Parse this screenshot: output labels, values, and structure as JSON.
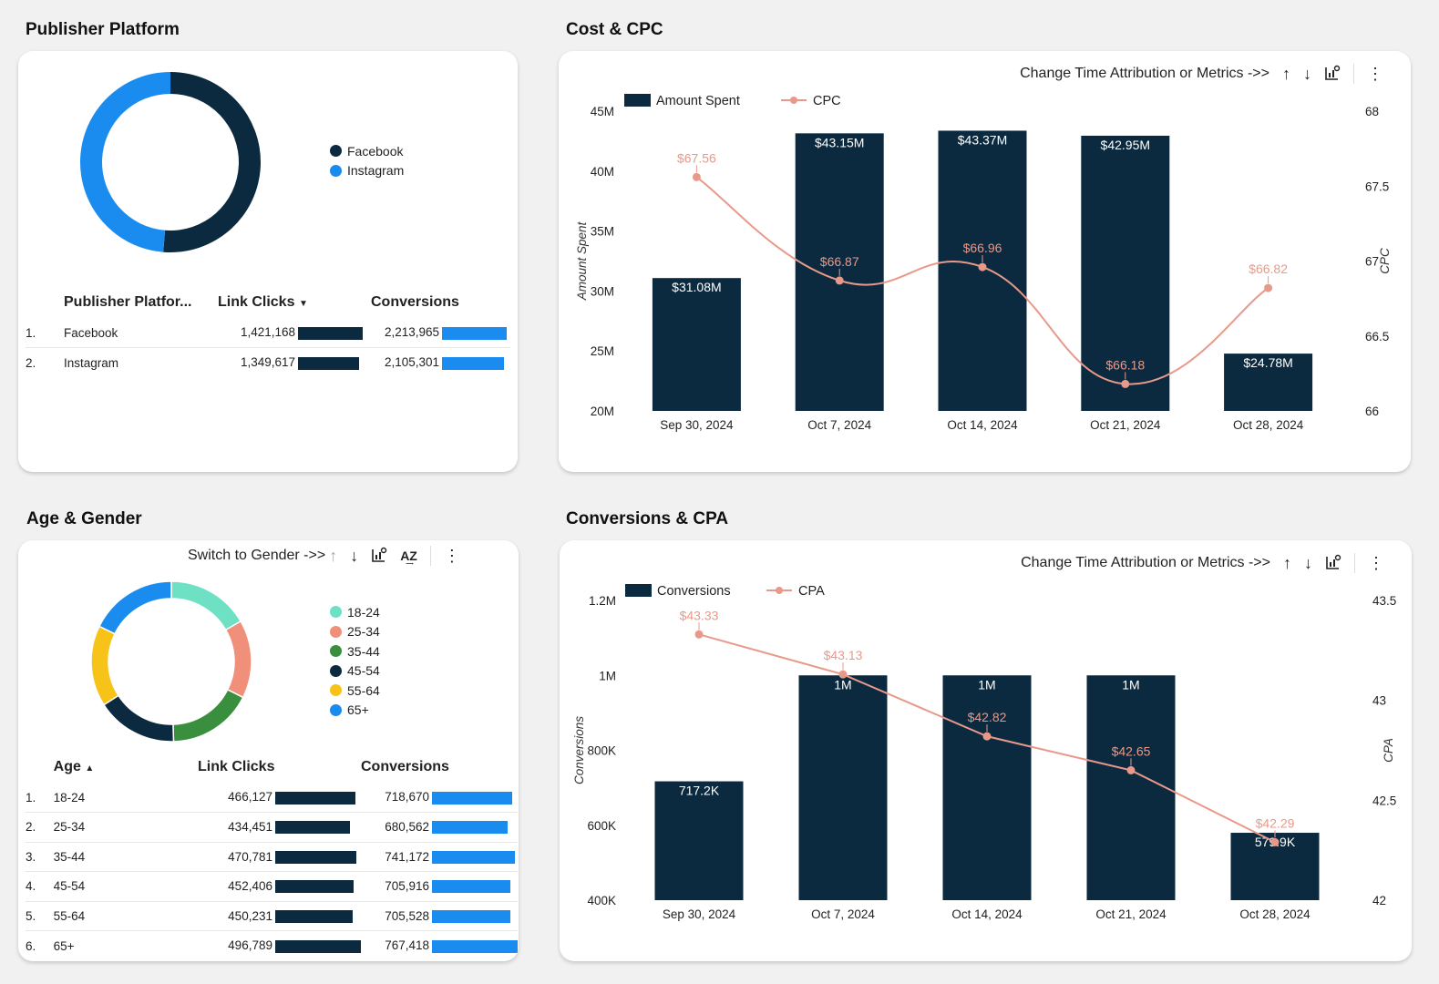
{
  "colors": {
    "dark": "#0b2a3f",
    "blue": "#1a8cf0",
    "line": "#e8998a",
    "teal": "#6ee0c4",
    "salmon": "#f0907a",
    "green": "#3a8f3e",
    "yellow": "#f7c319"
  },
  "publisher": {
    "title": "Publisher Platform",
    "legend": [
      {
        "label": "Facebook",
        "color": "#0b2a3f"
      },
      {
        "label": "Instagram",
        "color": "#1a8cf0"
      }
    ],
    "table": {
      "headers": [
        "Publisher Platfor...",
        "Link Clicks",
        "Conversions"
      ],
      "sort_icon": "sort-desc-icon",
      "rows": [
        {
          "idx": "1.",
          "name": "Facebook",
          "clicks": "1,421,168",
          "conv": "2,213,965",
          "clicks_val": 1421168,
          "conv_val": 2213965
        },
        {
          "idx": "2.",
          "name": "Instagram",
          "clicks": "1,349,617",
          "conv": "2,105,301",
          "clicks_val": 1349617,
          "conv_val": 2105301
        }
      ]
    }
  },
  "age": {
    "title": "Age & Gender",
    "toolbar_label": "Switch to Gender ->>",
    "legend": [
      {
        "label": "18-24",
        "color": "#6ee0c4"
      },
      {
        "label": "25-34",
        "color": "#f0907a"
      },
      {
        "label": "35-44",
        "color": "#3a8f3e"
      },
      {
        "label": "45-54",
        "color": "#0b2a3f"
      },
      {
        "label": "55-64",
        "color": "#f7c319"
      },
      {
        "label": "65+",
        "color": "#1a8cf0"
      }
    ],
    "table": {
      "headers": [
        "Age",
        "Link Clicks",
        "Conversions"
      ],
      "sort_icon": "sort-asc-icon",
      "rows": [
        {
          "idx": "1.",
          "name": "18-24",
          "clicks": "466,127",
          "conv": "718,670",
          "clicks_val": 466127,
          "conv_val": 718670
        },
        {
          "idx": "2.",
          "name": "25-34",
          "clicks": "434,451",
          "conv": "680,562",
          "clicks_val": 434451,
          "conv_val": 680562
        },
        {
          "idx": "3.",
          "name": "35-44",
          "clicks": "470,781",
          "conv": "741,172",
          "clicks_val": 470781,
          "conv_val": 741172
        },
        {
          "idx": "4.",
          "name": "45-54",
          "clicks": "452,406",
          "conv": "705,916",
          "clicks_val": 452406,
          "conv_val": 705916
        },
        {
          "idx": "5.",
          "name": "55-64",
          "clicks": "450,231",
          "conv": "705,528",
          "clicks_val": 450231,
          "conv_val": 705528
        },
        {
          "idx": "6.",
          "name": "65+",
          "clicks": "496,789",
          "conv": "767,418",
          "clicks_val": 496789,
          "conv_val": 767418
        }
      ]
    }
  },
  "cost": {
    "title": "Cost & CPC",
    "toolbar_label": "Change Time Attribution or Metrics ->>"
  },
  "conv": {
    "title": "Conversions & CPA",
    "toolbar_label": "Change Time Attribution or Metrics ->>"
  },
  "chart_data": [
    {
      "id": "publisher-donut",
      "type": "pie",
      "donut": true,
      "labels": [
        "Facebook",
        "Instagram"
      ],
      "values": [
        2213965,
        2105301
      ],
      "colors": [
        "#0b2a3f",
        "#1a8cf0"
      ]
    },
    {
      "id": "age-donut",
      "type": "pie",
      "donut": true,
      "labels": [
        "18-24",
        "25-34",
        "35-44",
        "45-54",
        "55-64",
        "65+"
      ],
      "values": [
        718670,
        680562,
        741172,
        705916,
        705528,
        767418
      ],
      "colors": [
        "#6ee0c4",
        "#f0907a",
        "#3a8f3e",
        "#0b2a3f",
        "#f7c319",
        "#1a8cf0"
      ]
    },
    {
      "id": "cost-cpc",
      "type": "bar",
      "categories": [
        "Sep 30, 2024",
        "Oct 7, 2024",
        "Oct 14, 2024",
        "Oct 21, 2024",
        "Oct 28, 2024"
      ],
      "series": [
        {
          "name": "Amount Spent",
          "type": "bar",
          "axis": "left",
          "values": [
            31080000,
            43150000,
            43370000,
            42950000,
            24780000
          ],
          "labels": [
            "$31.08M",
            "$43.15M",
            "$43.37M",
            "$42.95M",
            "$24.78M"
          ],
          "color": "#0b2a3f"
        },
        {
          "name": "CPC",
          "type": "line",
          "axis": "right",
          "values": [
            67.56,
            66.87,
            66.96,
            66.18,
            66.82
          ],
          "labels": [
            "$67.56",
            "$66.87",
            "$66.96",
            "$66.18",
            "$66.82"
          ],
          "color": "#e8998a"
        }
      ],
      "ylabel": "Amount Spent",
      "y2label": "CPC",
      "ylim": [
        20000000,
        45000000
      ],
      "yticks": [
        20000000,
        25000000,
        30000000,
        35000000,
        40000000,
        45000000
      ],
      "ytick_labels": [
        "20M",
        "25M",
        "30M",
        "35M",
        "40M",
        "45M"
      ],
      "y2lim": [
        66,
        68
      ],
      "y2ticks": [
        66,
        66.5,
        67,
        67.5,
        68
      ],
      "y2tick_labels": [
        "66",
        "66.5",
        "67",
        "67.5",
        "68"
      ],
      "legend": "top-left",
      "grid": false
    },
    {
      "id": "conv-cpa",
      "type": "bar",
      "categories": [
        "Sep 30, 2024",
        "Oct 7, 2024",
        "Oct 14, 2024",
        "Oct 21, 2024",
        "Oct 28, 2024"
      ],
      "series": [
        {
          "name": "Conversions",
          "type": "bar",
          "axis": "left",
          "values": [
            717200,
            1000000,
            1000000,
            1000000,
            579900
          ],
          "labels": [
            "717.2K",
            "1M",
            "1M",
            "1M",
            "579.9K"
          ],
          "color": "#0b2a3f"
        },
        {
          "name": "CPA",
          "type": "line",
          "axis": "right",
          "values": [
            43.33,
            43.13,
            42.82,
            42.65,
            42.29
          ],
          "labels": [
            "$43.33",
            "$43.13",
            "$42.82",
            "$42.65",
            "$42.29"
          ],
          "color": "#e8998a"
        }
      ],
      "ylabel": "Conversions",
      "y2label": "CPA",
      "ylim": [
        400000,
        1200000
      ],
      "yticks": [
        400000,
        600000,
        800000,
        1000000,
        1200000
      ],
      "ytick_labels": [
        "400K",
        "600K",
        "800K",
        "1M",
        "1.2M"
      ],
      "y2lim": [
        42,
        43.5
      ],
      "y2ticks": [
        42,
        42.5,
        43,
        43.5
      ],
      "y2tick_labels": [
        "42",
        "42.5",
        "43",
        "43.5"
      ],
      "legend": "top-left",
      "grid": false
    }
  ]
}
